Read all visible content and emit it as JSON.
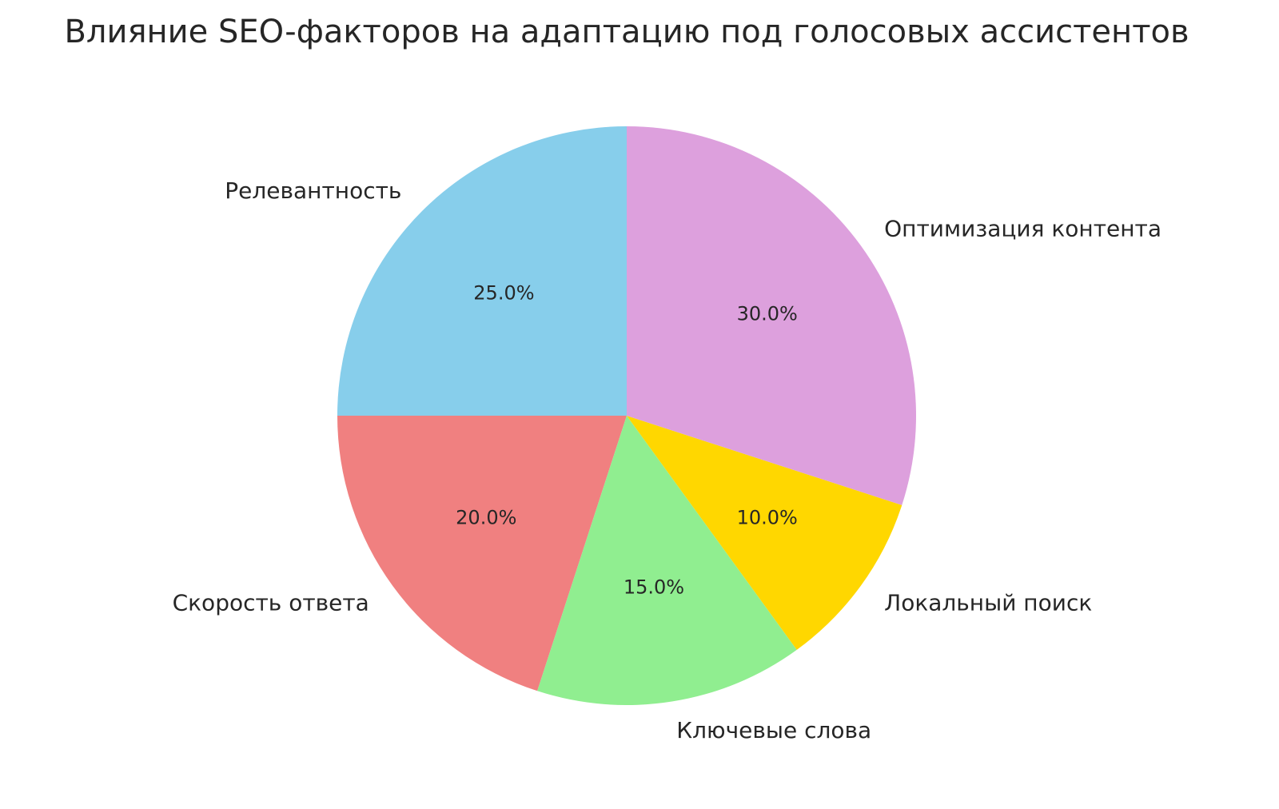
{
  "chart_data": {
    "type": "pie",
    "title": "Влияние SEO-факторов на адаптацию под голосовых ассистентов",
    "categories": [
      "Релевантность",
      "Скорость ответа",
      "Ключевые слова",
      "Локальный поиск",
      "Оптимизация контента"
    ],
    "values": [
      25,
      20,
      15,
      10,
      30
    ],
    "pct_labels": [
      "25.0%",
      "20.0%",
      "15.0%",
      "10.0%",
      "30.0%"
    ],
    "colors": [
      "#87CEEB",
      "#F08080",
      "#90EE90",
      "#FFD700",
      "#DDA0DD"
    ],
    "start_angle": 90,
    "direction": "counterclockwise"
  }
}
